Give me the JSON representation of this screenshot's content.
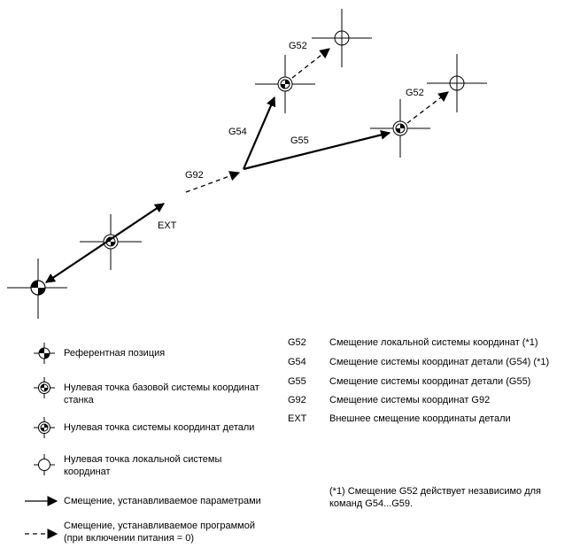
{
  "diagram_labels": {
    "ext": "EXT",
    "g92": "G92",
    "g54": "G54",
    "g55": "G55",
    "g52_top": "G52",
    "g52_right": "G52"
  },
  "legend_symbols": [
    {
      "text": "Референтная позиция"
    },
    {
      "text": "Нулевая точка базовой системы координат\nстанка"
    },
    {
      "text": "Нулевая точка системы координат детали"
    },
    {
      "text": "Нулевая точка локальной системы\nкоординат"
    }
  ],
  "legend_lines": [
    {
      "text": "Смещение, устанавливаемое параметрами"
    },
    {
      "text": "Смещение, устанавливаемое программой\n(при включении питания = 0)"
    }
  ],
  "codes": [
    {
      "code": "G52",
      "desc": "Смещение локальной системы координат (*1)"
    },
    {
      "code": "G54",
      "desc": "Смещение системы координат детали (G54) (*1)"
    },
    {
      "code": "G55",
      "desc": "Смещение системы координат детали (G55)"
    },
    {
      "code": "G92",
      "desc": "Смещение системы координат G92"
    },
    {
      "code": "EXT",
      "desc": "Внешнее смещение координаты детали"
    }
  ],
  "footnote": "(*1) Смещение G52 действует независимо для\nкоманд G54...G59."
}
